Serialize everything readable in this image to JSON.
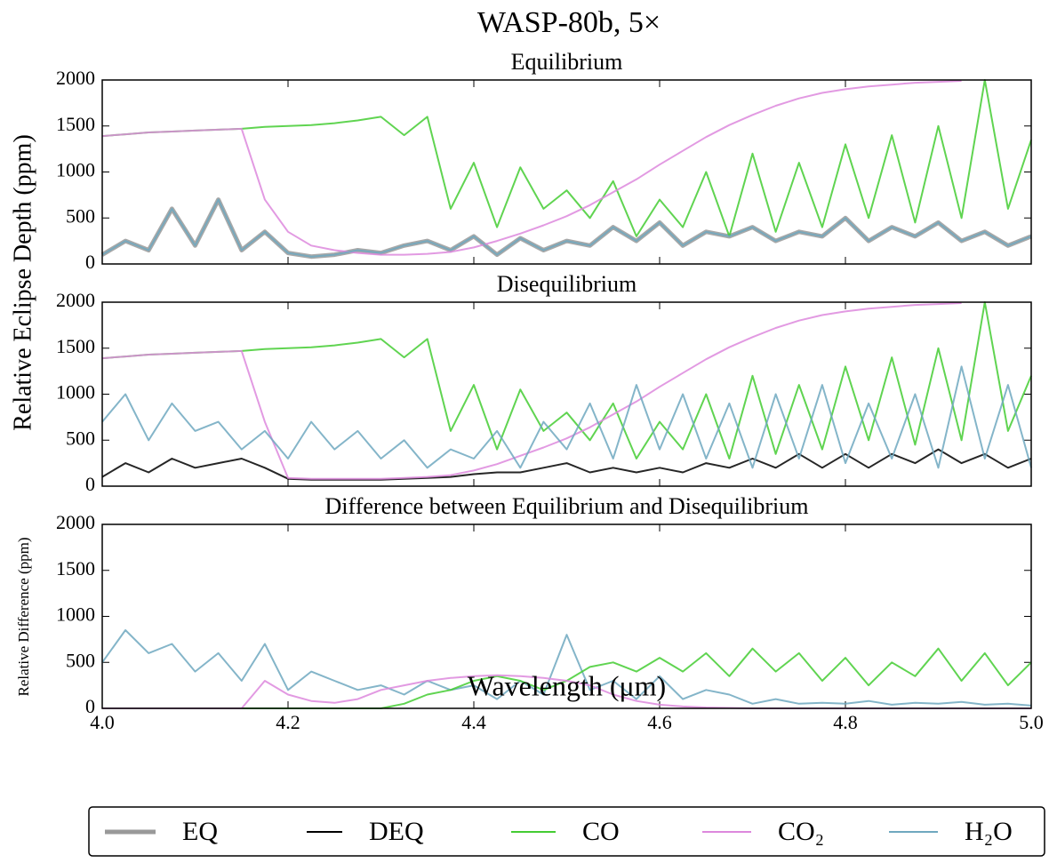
{
  "title": "WASP-80b, 5×",
  "ylabel": "Relative Eclipse Depth (ppm)",
  "chart_data": [
    {
      "type": "line",
      "title": "Equilibrium",
      "x": [
        4.0,
        4.025,
        4.05,
        4.075,
        4.1,
        4.125,
        4.15,
        4.175,
        4.2,
        4.225,
        4.25,
        4.275,
        4.3,
        4.325,
        4.35,
        4.375,
        4.4,
        4.425,
        4.45,
        4.475,
        4.5,
        4.525,
        4.55,
        4.575,
        4.6,
        4.625,
        4.65,
        4.675,
        4.7,
        4.725,
        4.75,
        4.775,
        4.8,
        4.825,
        4.85,
        4.875,
        4.9,
        4.925,
        4.95,
        4.975,
        5.0
      ],
      "ylim": [
        0,
        2000
      ],
      "yticks": [
        0,
        500,
        1000,
        1500,
        2000
      ],
      "series": [
        {
          "name": "EQ",
          "color": "#999999",
          "values": [
            100,
            250,
            150,
            600,
            200,
            700,
            150,
            350,
            120,
            80,
            100,
            150,
            120,
            200,
            250,
            150,
            300,
            100,
            280,
            150,
            250,
            200,
            400,
            250,
            450,
            200,
            350,
            300,
            400,
            250,
            350,
            300,
            500,
            250,
            400,
            300,
            450,
            250,
            350,
            200,
            300
          ]
        },
        {
          "name": "CO",
          "color": "#44cc33",
          "values": [
            1390,
            1410,
            1430,
            1440,
            1450,
            1460,
            1470,
            1490,
            1500,
            1510,
            1530,
            1560,
            1600,
            1400,
            1600,
            600,
            1100,
            400,
            1050,
            600,
            800,
            500,
            900,
            300,
            700,
            400,
            1000,
            300,
            1200,
            350,
            1100,
            400,
            1300,
            500,
            1400,
            450,
            1500,
            500,
            2000,
            600,
            1350
          ]
        },
        {
          "name": "CO₂",
          "color": "#dd88dd",
          "values": [
            1390,
            1410,
            1430,
            1440,
            1450,
            1460,
            1470,
            700,
            350,
            200,
            150,
            120,
            100,
            100,
            110,
            130,
            180,
            250,
            330,
            420,
            520,
            640,
            780,
            920,
            1080,
            1230,
            1380,
            1510,
            1620,
            1720,
            1800,
            1860,
            1900,
            1930,
            1950,
            1970,
            1980,
            1990,
            null,
            null,
            null
          ]
        },
        {
          "name": "H₂O",
          "color": "#6fa8bf",
          "values": [
            100,
            250,
            150,
            600,
            200,
            700,
            150,
            350,
            120,
            80,
            100,
            150,
            120,
            200,
            250,
            150,
            300,
            100,
            280,
            150,
            250,
            200,
            400,
            250,
            450,
            200,
            350,
            300,
            400,
            250,
            350,
            300,
            500,
            250,
            400,
            300,
            450,
            250,
            350,
            200,
            300
          ]
        }
      ]
    },
    {
      "type": "line",
      "title": "Disequilibrium",
      "x": [
        4.0,
        4.025,
        4.05,
        4.075,
        4.1,
        4.125,
        4.15,
        4.175,
        4.2,
        4.225,
        4.25,
        4.275,
        4.3,
        4.325,
        4.35,
        4.375,
        4.4,
        4.425,
        4.45,
        4.475,
        4.5,
        4.525,
        4.55,
        4.575,
        4.6,
        4.625,
        4.65,
        4.675,
        4.7,
        4.725,
        4.75,
        4.775,
        4.8,
        4.825,
        4.85,
        4.875,
        4.9,
        4.925,
        4.95,
        4.975,
        5.0
      ],
      "ylim": [
        0,
        2000
      ],
      "yticks": [
        0,
        500,
        1000,
        1500,
        2000
      ],
      "series": [
        {
          "name": "DEQ",
          "color": "#000000",
          "values": [
            100,
            250,
            150,
            300,
            200,
            250,
            300,
            200,
            80,
            70,
            70,
            70,
            70,
            80,
            90,
            100,
            130,
            150,
            150,
            200,
            250,
            150,
            200,
            150,
            200,
            150,
            250,
            200,
            300,
            200,
            350,
            200,
            350,
            200,
            350,
            250,
            400,
            250,
            350,
            200,
            300
          ]
        },
        {
          "color": "#44cc33",
          "values": [
            1390,
            1410,
            1430,
            1440,
            1450,
            1460,
            1470,
            1490,
            1500,
            1510,
            1530,
            1560,
            1600,
            1400,
            1600,
            600,
            1100,
            400,
            1050,
            600,
            800,
            500,
            900,
            300,
            700,
            400,
            1000,
            300,
            1200,
            350,
            1100,
            400,
            1300,
            500,
            1400,
            450,
            1500,
            500,
            2000,
            600,
            1200
          ]
        },
        {
          "color": "#dd88dd",
          "values": [
            1390,
            1410,
            1430,
            1440,
            1450,
            1460,
            1470,
            700,
            90,
            80,
            80,
            80,
            80,
            90,
            100,
            120,
            170,
            240,
            330,
            420,
            520,
            640,
            780,
            920,
            1080,
            1230,
            1380,
            1510,
            1620,
            1720,
            1800,
            1860,
            1900,
            1930,
            1950,
            1970,
            1980,
            1990,
            null,
            null,
            null
          ]
        },
        {
          "color": "#6fa8bf",
          "values": [
            700,
            1000,
            500,
            900,
            600,
            700,
            400,
            600,
            300,
            700,
            400,
            600,
            300,
            500,
            200,
            400,
            300,
            600,
            200,
            700,
            400,
            900,
            300,
            1100,
            400,
            1000,
            300,
            900,
            200,
            1000,
            300,
            1100,
            250,
            900,
            300,
            1000,
            200,
            1300,
            300,
            1100,
            200
          ]
        }
      ]
    },
    {
      "type": "line",
      "title": "Difference between Equilibrium and Disequilibrium",
      "ylabel": "Relative Difference (ppm)",
      "xlabel": "Wavelength (μm)",
      "x": [
        4.0,
        4.025,
        4.05,
        4.075,
        4.1,
        4.125,
        4.15,
        4.175,
        4.2,
        4.225,
        4.25,
        4.275,
        4.3,
        4.325,
        4.35,
        4.375,
        4.4,
        4.425,
        4.45,
        4.475,
        4.5,
        4.525,
        4.55,
        4.575,
        4.6,
        4.625,
        4.65,
        4.675,
        4.7,
        4.725,
        4.75,
        4.775,
        4.8,
        4.825,
        4.85,
        4.875,
        4.9,
        4.925,
        4.95,
        4.975,
        5.0
      ],
      "xlim": [
        4.0,
        5.0
      ],
      "xticks": [
        {
          "value": 4.0,
          "label": "4.0"
        },
        {
          "value": 4.2,
          "label": "4.2"
        },
        {
          "value": 4.4,
          "label": "4.4"
        },
        {
          "value": 4.6,
          "label": "4.6"
        },
        {
          "value": 4.8,
          "label": "4.8"
        },
        {
          "value": 5.0,
          "label": "5.0"
        }
      ],
      "ylim": [
        0,
        2000
      ],
      "yticks": [
        0,
        500,
        1000,
        1500,
        2000
      ],
      "series": [
        {
          "color": "#6fa8bf",
          "values": [
            500,
            850,
            600,
            700,
            400,
            600,
            300,
            700,
            200,
            400,
            300,
            200,
            250,
            150,
            300,
            200,
            250,
            100,
            300,
            150,
            800,
            200,
            300,
            100,
            350,
            100,
            200,
            150,
            50,
            100,
            50,
            60,
            50,
            80,
            40,
            60,
            50,
            70,
            40,
            50,
            30
          ]
        },
        {
          "color": "#44cc33",
          "values": [
            0,
            0,
            0,
            0,
            0,
            0,
            0,
            0,
            0,
            0,
            0,
            0,
            0,
            50,
            150,
            200,
            300,
            350,
            300,
            200,
            300,
            450,
            500,
            400,
            550,
            400,
            600,
            350,
            650,
            400,
            600,
            300,
            550,
            250,
            500,
            350,
            650,
            300,
            600,
            250,
            500
          ]
        },
        {
          "color": "#dd88dd",
          "values": [
            0,
            0,
            0,
            0,
            0,
            0,
            0,
            300,
            150,
            80,
            60,
            100,
            200,
            250,
            300,
            330,
            350,
            360,
            350,
            330,
            300,
            250,
            150,
            80,
            40,
            20,
            10,
            5,
            0,
            0,
            0,
            0,
            0,
            0,
            0,
            0,
            0,
            0,
            0,
            0,
            0
          ]
        }
      ]
    }
  ]
}
